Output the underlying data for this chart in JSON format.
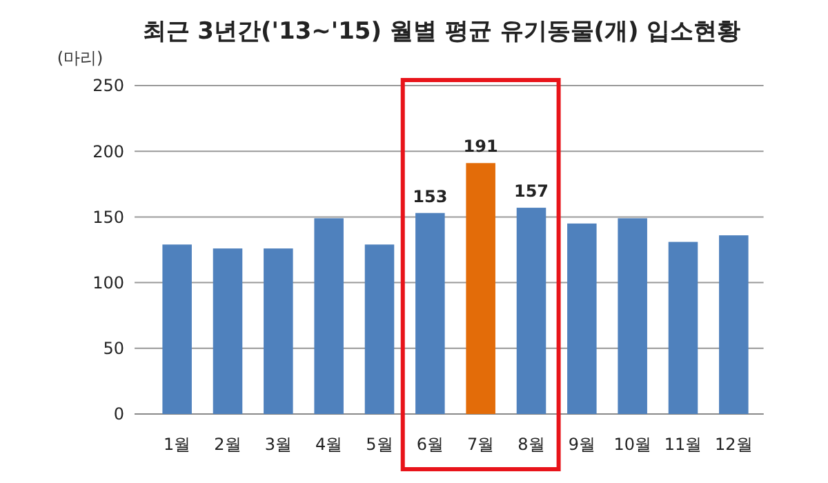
{
  "chart_data": {
    "type": "bar",
    "title": "최근 3년간('13~'15) 월별 평균 유기동물(개) 입소현황",
    "ylabel": "(마리)",
    "categories": [
      "1월",
      "2월",
      "3월",
      "4월",
      "5월",
      "6월",
      "7월",
      "8월",
      "9월",
      "10월",
      "11월",
      "12월"
    ],
    "values": [
      129,
      126,
      126,
      149,
      129,
      153,
      191,
      157,
      145,
      149,
      131,
      136
    ],
    "colors": [
      "#4f81bd",
      "#4f81bd",
      "#4f81bd",
      "#4f81bd",
      "#4f81bd",
      "#4f81bd",
      "#e36c09",
      "#4f81bd",
      "#4f81bd",
      "#4f81bd",
      "#4f81bd",
      "#4f81bd"
    ],
    "value_labels": [
      null,
      null,
      null,
      null,
      null,
      "153",
      "191",
      "157",
      null,
      null,
      null,
      null
    ],
    "ylim": [
      0,
      250
    ],
    "yticks": [
      0,
      50,
      100,
      150,
      200,
      250
    ],
    "grid": "y"
  }
}
